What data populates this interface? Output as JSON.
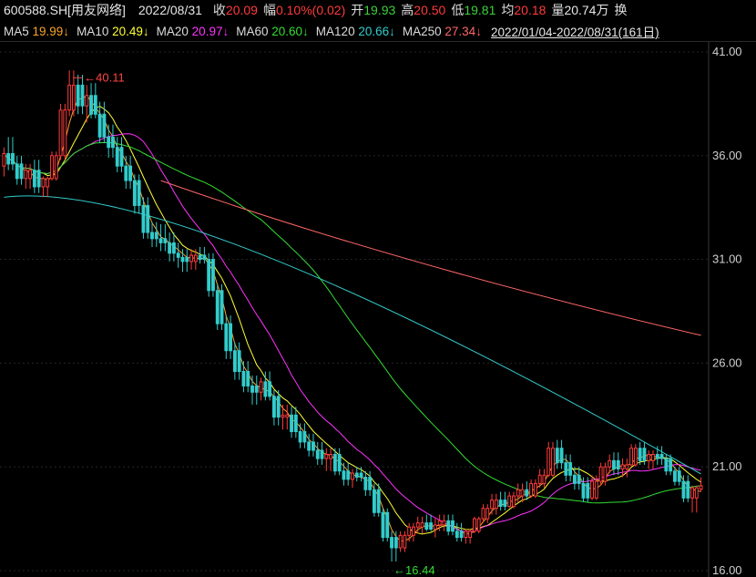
{
  "header": {
    "code": "600588.SH[用友网络]",
    "date": "2022/08/31",
    "close_label": "收",
    "close": "20.09",
    "change_label": "幅",
    "change": "0.10%(0.02)",
    "open_label": "开",
    "open": "19.93",
    "high_label": "高",
    "high": "20.50",
    "low_label": "低",
    "low": "19.81",
    "avg_label": "均",
    "avg": "20.18",
    "vol_label": "量",
    "vol": "20.74万",
    "turnover_label": "换"
  },
  "ma_legend": [
    {
      "label": "MA5",
      "value": "19.99",
      "dir": "↓",
      "color": "#f7a42a"
    },
    {
      "label": "MA10",
      "value": "20.49",
      "dir": "↓",
      "color": "#ffff33"
    },
    {
      "label": "MA20",
      "value": "20.97",
      "dir": "↓",
      "color": "#ff33ff"
    },
    {
      "label": "MA60",
      "value": "20.60",
      "dir": "↓",
      "color": "#33dd33"
    },
    {
      "label": "MA120",
      "value": "20.66",
      "dir": "↓",
      "color": "#33cccc"
    },
    {
      "label": "MA250",
      "value": "27.34",
      "dir": "↓",
      "color": "#ff6666"
    }
  ],
  "range_label": "2022/01/04-2022/08/31(161日)",
  "chart_data": {
    "type": "candlestick",
    "y_ticks": [
      "41.00",
      "36.00",
      "31.00",
      "26.00",
      "21.00",
      "16.00"
    ],
    "ylim": [
      16,
      41
    ],
    "grid": true,
    "high_annotation": {
      "label": "40.11",
      "value": 40.11
    },
    "low_annotation": {
      "label": "16.44",
      "value": 16.44
    },
    "anchors_ohlc": [
      [
        35.5,
        36.4,
        35.0,
        36.1
      ],
      [
        36.1,
        36.9,
        35.3,
        35.6
      ],
      [
        35.6,
        36.0,
        34.6,
        34.9
      ],
      [
        34.9,
        35.6,
        34.4,
        35.3
      ],
      [
        35.3,
        35.8,
        34.2,
        34.5
      ],
      [
        34.5,
        35.0,
        34.0,
        34.9
      ],
      [
        34.9,
        36.2,
        34.8,
        36.0
      ],
      [
        36.0,
        38.5,
        35.8,
        38.2
      ],
      [
        38.2,
        40.11,
        37.9,
        39.4
      ],
      [
        39.4,
        39.9,
        38.0,
        38.4
      ],
      [
        38.4,
        39.4,
        37.6,
        38.9
      ],
      [
        38.9,
        39.5,
        37.8,
        38.0
      ],
      [
        38.0,
        38.6,
        36.6,
        36.9
      ],
      [
        36.9,
        37.5,
        35.9,
        36.4
      ],
      [
        36.4,
        36.9,
        35.2,
        35.5
      ],
      [
        35.5,
        36.0,
        34.4,
        34.8
      ],
      [
        34.8,
        35.1,
        33.2,
        33.6
      ],
      [
        33.6,
        34.0,
        32.0,
        32.3
      ],
      [
        32.3,
        32.8,
        31.6,
        32.0
      ],
      [
        32.0,
        32.7,
        31.4,
        31.8
      ],
      [
        31.8,
        32.3,
        30.9,
        31.3
      ],
      [
        31.3,
        31.8,
        30.6,
        31.1
      ],
      [
        31.1,
        31.5,
        30.4,
        30.9
      ],
      [
        30.9,
        31.5,
        30.5,
        31.2
      ],
      [
        31.2,
        31.6,
        30.8,
        31.0
      ],
      [
        31.0,
        31.3,
        29.2,
        29.5
      ],
      [
        29.5,
        29.8,
        27.6,
        27.9
      ],
      [
        27.9,
        28.3,
        26.2,
        26.6
      ],
      [
        26.6,
        27.0,
        25.2,
        25.6
      ],
      [
        25.6,
        26.1,
        24.6,
        24.9
      ],
      [
        24.9,
        25.4,
        24.0,
        24.6
      ],
      [
        24.6,
        25.3,
        24.2,
        25.1
      ],
      [
        25.1,
        25.6,
        24.2,
        24.4
      ],
      [
        24.4,
        24.7,
        23.0,
        23.4
      ],
      [
        23.4,
        24.0,
        22.8,
        23.5
      ],
      [
        23.5,
        23.9,
        22.4,
        22.7
      ],
      [
        22.7,
        23.1,
        21.9,
        22.2
      ],
      [
        22.2,
        22.6,
        21.5,
        21.8
      ],
      [
        21.8,
        22.2,
        21.1,
        21.4
      ],
      [
        21.4,
        21.9,
        20.8,
        21.6
      ],
      [
        21.6,
        21.9,
        20.6,
        20.8
      ],
      [
        20.8,
        21.2,
        20.1,
        20.4
      ],
      [
        20.4,
        20.9,
        20.0,
        20.7
      ],
      [
        20.7,
        21.0,
        20.3,
        20.5
      ],
      [
        20.5,
        20.8,
        19.6,
        19.9
      ],
      [
        19.9,
        20.2,
        18.6,
        18.8
      ],
      [
        18.8,
        19.0,
        17.4,
        17.6
      ],
      [
        17.6,
        17.9,
        16.44,
        17.1
      ],
      [
        17.1,
        17.9,
        16.9,
        17.7
      ],
      [
        17.7,
        18.3,
        17.4,
        18.1
      ],
      [
        18.1,
        18.6,
        17.8,
        18.3
      ],
      [
        18.3,
        18.7,
        17.9,
        18.0
      ],
      [
        18.0,
        18.5,
        17.6,
        18.2
      ],
      [
        18.2,
        18.7,
        17.9,
        18.4
      ],
      [
        18.4,
        18.7,
        17.7,
        17.9
      ],
      [
        17.9,
        18.3,
        17.4,
        17.6
      ],
      [
        17.6,
        18.0,
        17.3,
        17.9
      ],
      [
        17.9,
        18.6,
        17.8,
        18.5
      ],
      [
        18.5,
        19.2,
        18.3,
        19.0
      ],
      [
        19.0,
        19.7,
        18.7,
        19.4
      ],
      [
        19.4,
        19.8,
        18.9,
        19.1
      ],
      [
        19.1,
        19.8,
        19.0,
        19.6
      ],
      [
        19.6,
        20.2,
        19.3,
        19.9
      ],
      [
        19.9,
        20.3,
        19.4,
        19.6
      ],
      [
        19.6,
        20.4,
        19.5,
        20.2
      ],
      [
        20.2,
        20.9,
        20.0,
        20.6
      ],
      [
        20.6,
        22.2,
        20.5,
        21.9
      ],
      [
        21.9,
        22.3,
        20.9,
        21.2
      ],
      [
        21.2,
        21.6,
        20.3,
        20.6
      ],
      [
        20.6,
        21.0,
        19.9,
        20.2
      ],
      [
        20.2,
        20.5,
        19.3,
        19.5
      ],
      [
        19.5,
        20.6,
        19.4,
        20.3
      ],
      [
        20.3,
        21.2,
        20.1,
        21.0
      ],
      [
        21.0,
        21.6,
        20.7,
        21.3
      ],
      [
        21.3,
        21.7,
        20.6,
        20.9
      ],
      [
        20.9,
        21.4,
        20.5,
        21.1
      ],
      [
        21.1,
        22.1,
        21.0,
        21.9
      ],
      [
        21.9,
        22.2,
        21.1,
        21.3
      ],
      [
        21.3,
        21.8,
        20.9,
        21.6
      ],
      [
        21.6,
        22.0,
        21.1,
        21.4
      ],
      [
        21.4,
        21.6,
        20.6,
        20.8
      ],
      [
        20.8,
        21.0,
        20.1,
        20.3
      ],
      [
        20.3,
        20.6,
        19.3,
        19.5
      ],
      [
        19.5,
        20.1,
        18.8,
        19.99
      ],
      [
        19.93,
        20.5,
        19.81,
        20.09
      ]
    ]
  }
}
